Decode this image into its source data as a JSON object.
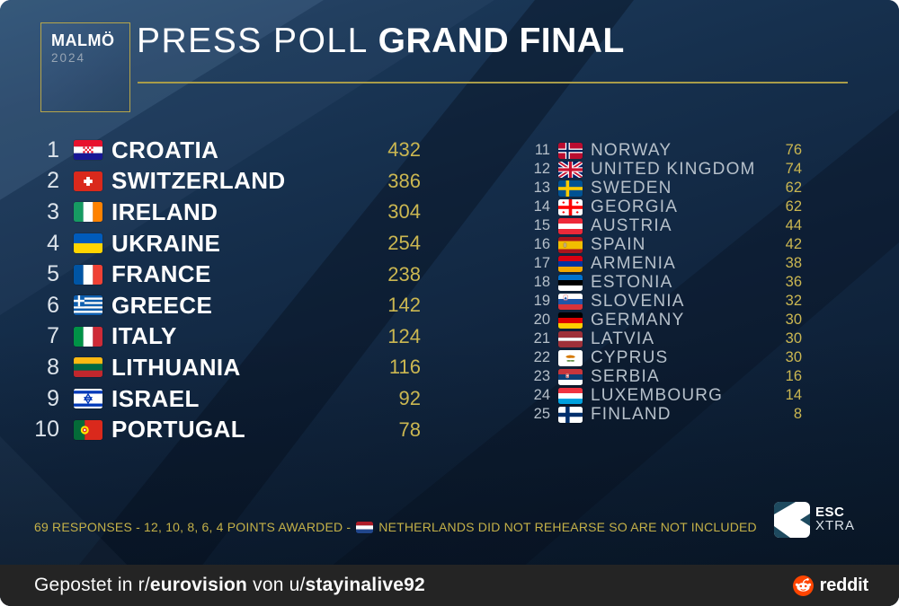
{
  "header": {
    "badge": {
      "city": "MALMÖ",
      "year": "2024"
    },
    "title_light": "PRESS POLL",
    "title_bold": "GRAND FINAL"
  },
  "left_column": {
    "rows": [
      {
        "rank": "1",
        "flag": "croatia",
        "country": "CROATIA",
        "score": "432"
      },
      {
        "rank": "2",
        "flag": "switzerland",
        "country": "SWITZERLAND",
        "score": "386"
      },
      {
        "rank": "3",
        "flag": "ireland",
        "country": "IRELAND",
        "score": "304"
      },
      {
        "rank": "4",
        "flag": "ukraine",
        "country": "UKRAINE",
        "score": "254"
      },
      {
        "rank": "5",
        "flag": "france",
        "country": "FRANCE",
        "score": "238"
      },
      {
        "rank": "6",
        "flag": "greece",
        "country": "GREECE",
        "score": "142"
      },
      {
        "rank": "7",
        "flag": "italy",
        "country": "ITALY",
        "score": "124"
      },
      {
        "rank": "8",
        "flag": "lithuania",
        "country": "LITHUANIA",
        "score": "116"
      },
      {
        "rank": "9",
        "flag": "israel",
        "country": "ISRAEL",
        "score": "92"
      },
      {
        "rank": "10",
        "flag": "portugal",
        "country": "PORTUGAL",
        "score": "78"
      }
    ]
  },
  "right_column": {
    "rows": [
      {
        "rank": "11",
        "flag": "norway",
        "country": "NORWAY",
        "score": "76"
      },
      {
        "rank": "12",
        "flag": "uk",
        "country": "UNITED KINGDOM",
        "score": "74"
      },
      {
        "rank": "13",
        "flag": "sweden",
        "country": "SWEDEN",
        "score": "62"
      },
      {
        "rank": "14",
        "flag": "georgia",
        "country": "GEORGIA",
        "score": "62"
      },
      {
        "rank": "15",
        "flag": "austria",
        "country": "AUSTRIA",
        "score": "44"
      },
      {
        "rank": "16",
        "flag": "spain",
        "country": "SPAIN",
        "score": "42"
      },
      {
        "rank": "17",
        "flag": "armenia",
        "country": "ARMENIA",
        "score": "38"
      },
      {
        "rank": "18",
        "flag": "estonia",
        "country": "ESTONIA",
        "score": "36"
      },
      {
        "rank": "19",
        "flag": "slovenia",
        "country": "SLOVENIA",
        "score": "32"
      },
      {
        "rank": "20",
        "flag": "germany",
        "country": "GERMANY",
        "score": "30"
      },
      {
        "rank": "21",
        "flag": "latvia",
        "country": "LATVIA",
        "score": "30"
      },
      {
        "rank": "22",
        "flag": "cyprus",
        "country": "CYPRUS",
        "score": "30"
      },
      {
        "rank": "23",
        "flag": "serbia",
        "country": "SERBIA",
        "score": "16"
      },
      {
        "rank": "24",
        "flag": "luxembourg",
        "country": "LUXEMBOURG",
        "score": "14"
      },
      {
        "rank": "25",
        "flag": "finland",
        "country": "FINLAND",
        "score": "8"
      }
    ]
  },
  "footnote": {
    "prefix": "69 RESPONSES - 12, 10, 8, 6, 4 POINTS AWARDED -",
    "flag": "netherlands",
    "suffix": "NETHERLANDS DID NOT REHEARSE SO ARE NOT INCLUDED"
  },
  "branding": {
    "esc": "ESC",
    "xtra": "XTRA"
  },
  "footer": {
    "caption_parts": [
      {
        "text": "Gepostet in r/",
        "bold": false,
        "name": "caption-text",
        "interactable": false
      },
      {
        "text": "eurovision",
        "bold": true,
        "name": "subreddit-link",
        "interactable": true
      },
      {
        "text": " von u/",
        "bold": false,
        "name": "caption-text",
        "interactable": false
      },
      {
        "text": "stayinalive92",
        "bold": true,
        "name": "user-link",
        "interactable": true
      }
    ],
    "reddit_label": "reddit"
  },
  "colors": {
    "accent_gold": "#cbb751",
    "background_navy": "#122b45",
    "footer_bar": "#242424",
    "reddit_orange": "#ff4500",
    "escxtra_teal": "#1e4a5f"
  },
  "chart_data": {
    "type": "table",
    "title": "PRESS POLL GRAND FINAL",
    "subtitle": "MALMÖ 2024",
    "ranks": [
      1,
      2,
      3,
      4,
      5,
      6,
      7,
      8,
      9,
      10,
      11,
      12,
      13,
      14,
      15,
      16,
      17,
      18,
      19,
      20,
      21,
      22,
      23,
      24,
      25
    ],
    "categories": [
      "CROATIA",
      "SWITZERLAND",
      "IRELAND",
      "UKRAINE",
      "FRANCE",
      "GREECE",
      "ITALY",
      "LITHUANIA",
      "ISRAEL",
      "PORTUGAL",
      "NORWAY",
      "UNITED KINGDOM",
      "SWEDEN",
      "GEORGIA",
      "AUSTRIA",
      "SPAIN",
      "ARMENIA",
      "ESTONIA",
      "SLOVENIA",
      "GERMANY",
      "LATVIA",
      "CYPRUS",
      "SERBIA",
      "LUXEMBOURG",
      "FINLAND"
    ],
    "values": [
      432,
      386,
      304,
      254,
      238,
      142,
      124,
      116,
      92,
      78,
      76,
      74,
      62,
      62,
      44,
      42,
      38,
      36,
      32,
      30,
      30,
      30,
      16,
      14,
      8
    ],
    "note": "69 RESPONSES - 12, 10, 8, 6, 4 POINTS AWARDED - NETHERLANDS DID NOT REHEARSE SO ARE NOT INCLUDED"
  }
}
